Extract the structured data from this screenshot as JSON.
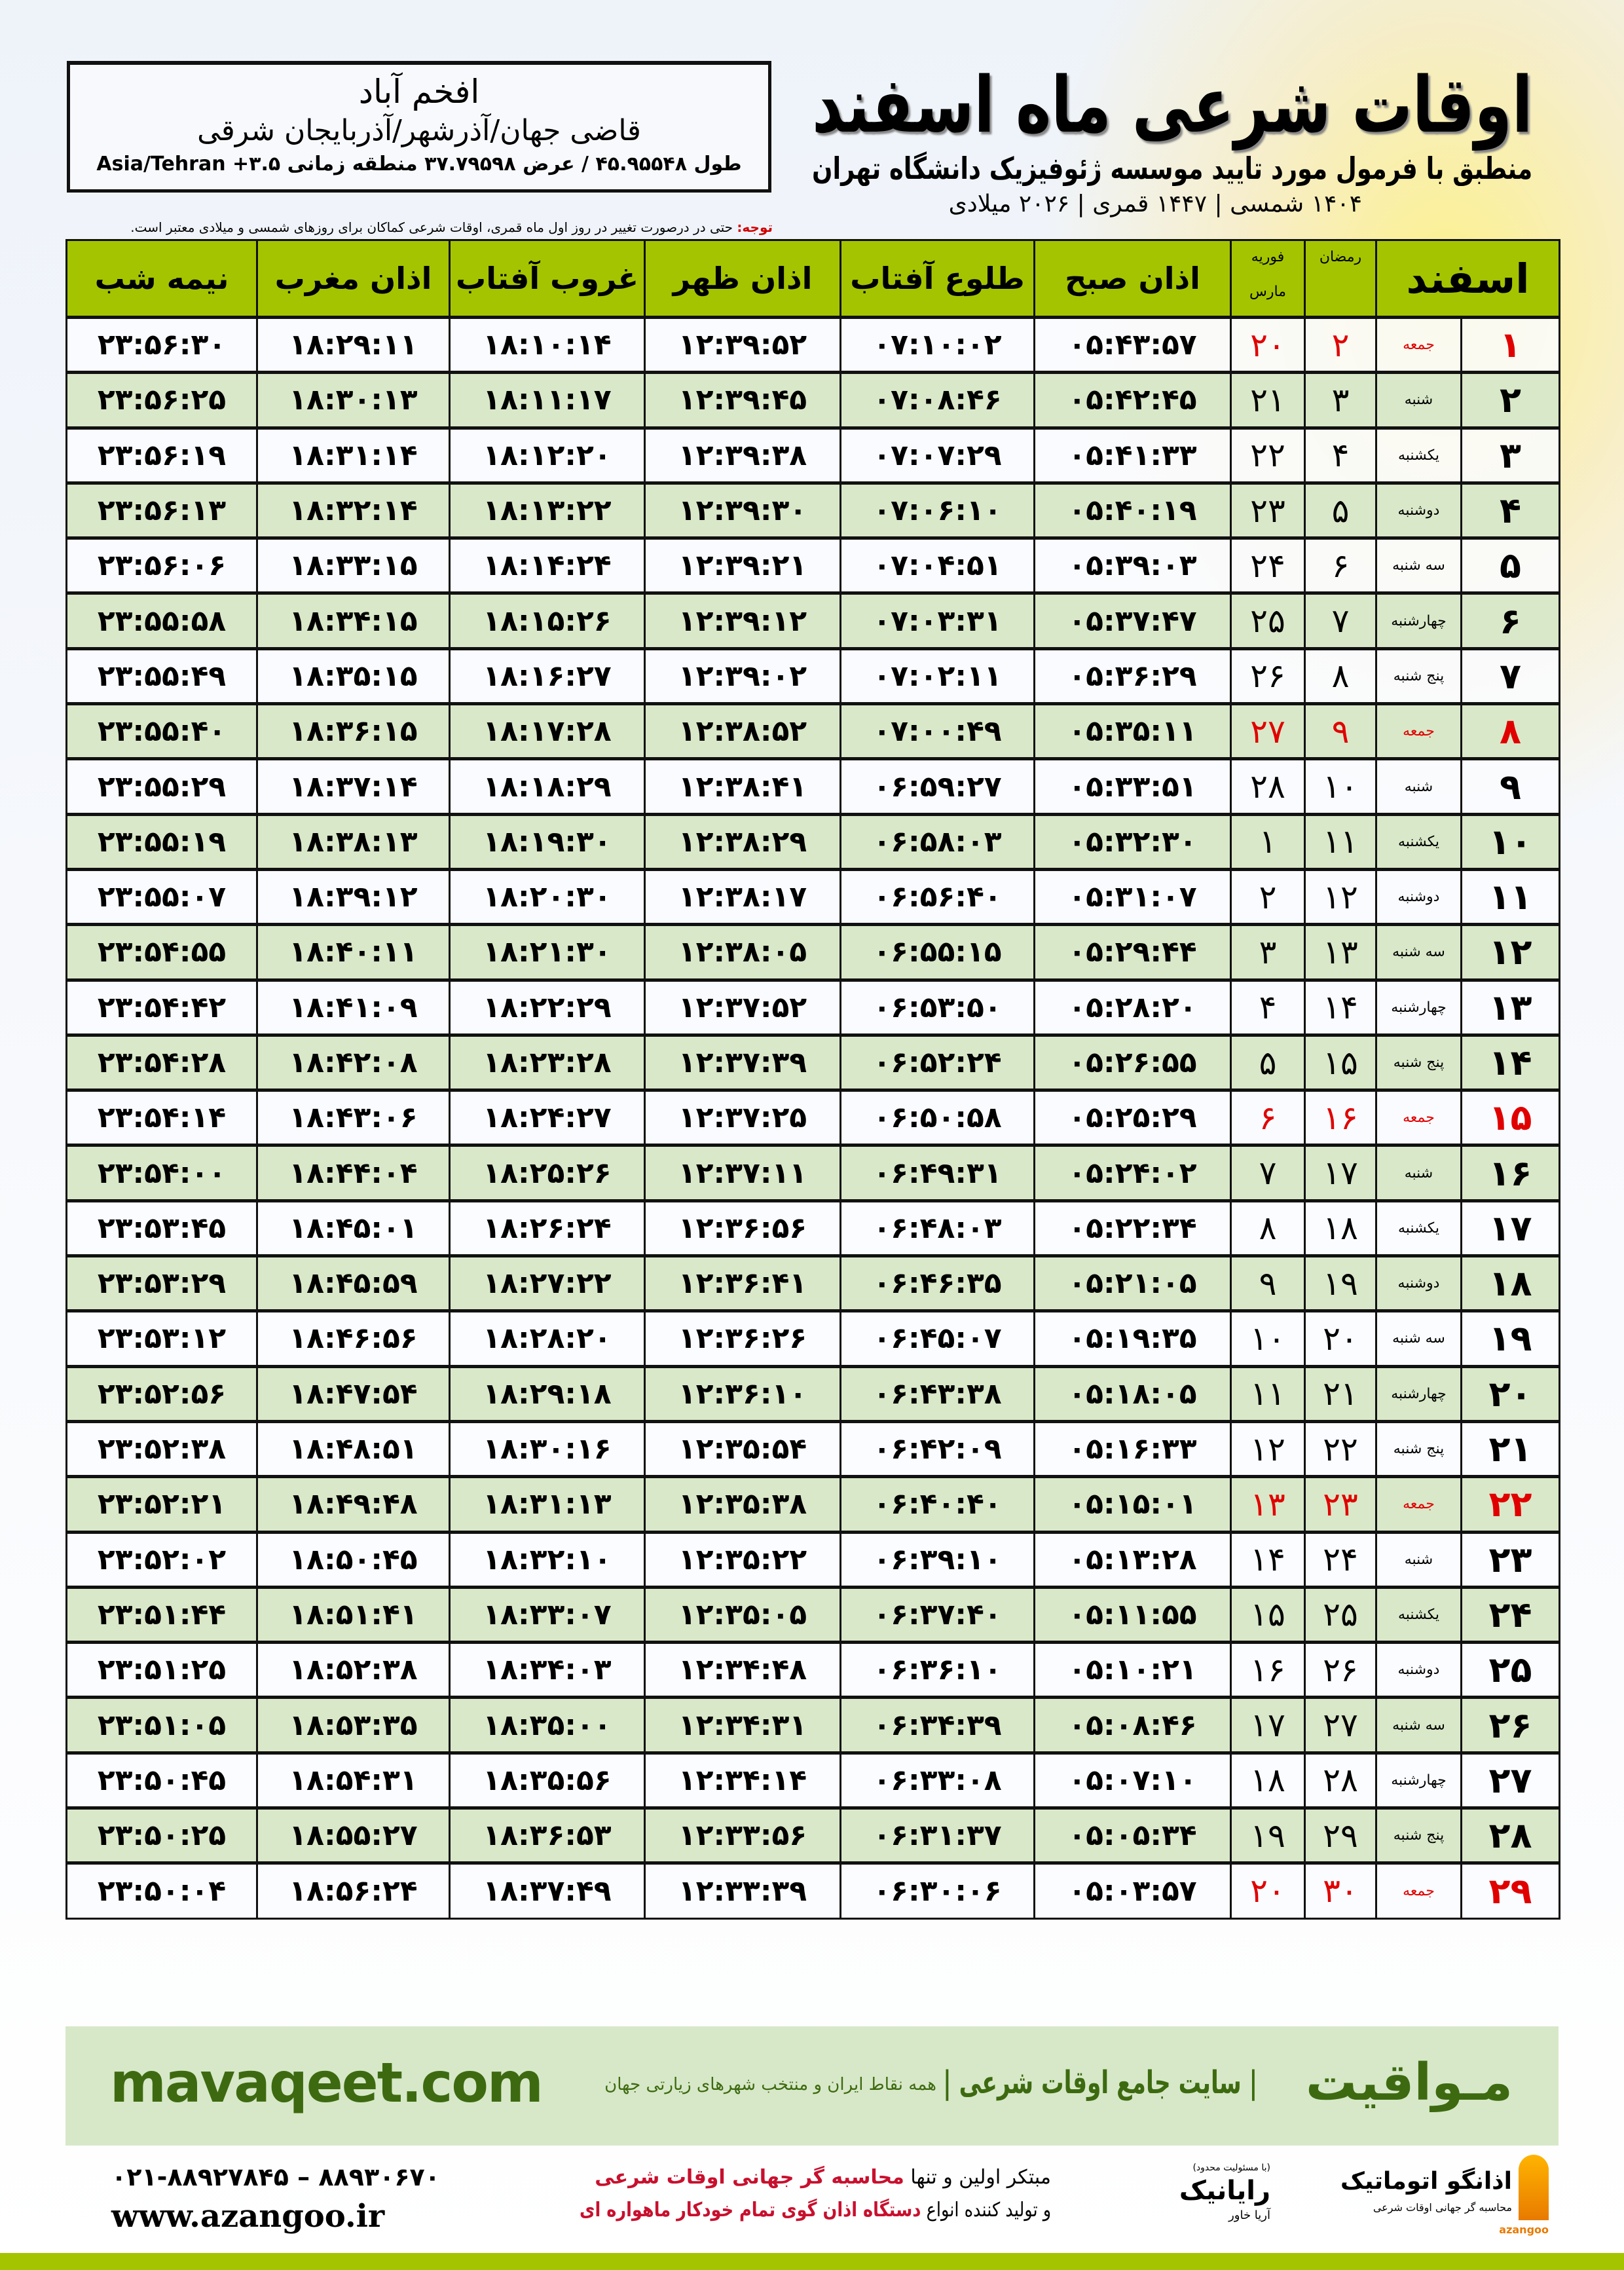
{
  "header": {
    "title": "اوقات شرعی ماه اسفند",
    "subtitle": "منطبق با فرمول مورد تایید موسسه ژئوفیزیک دانشگاه تهران",
    "dates": "۱۴۰۴ شمسی | ۱۴۴۷ قمری | ۲۰۲۶ میلادی"
  },
  "location": {
    "city": "افخم آباد",
    "path": "قاضی جهان/آذرشهر/آذربایجان شرقی",
    "coords": "طول ۴۵.۹۵۵۴۸ / عرض ۳۷.۷۹۵۹۸ منطقه زمانی ۳.۵+ Asia/Tehran"
  },
  "note": {
    "label": "توجه:",
    "text": " حتی در درصورت تغییر در روز اول ماه قمری، اوقات شرعی کماکان برای روزهای شمسی و میلادی معتبر است."
  },
  "table": {
    "headers": {
      "esfand": "اسفند",
      "ramadan": "رمضان",
      "feb": "فوریه",
      "march": "مارس",
      "sobh": "اذان صبح",
      "tolu": "طلوع آفتاب",
      "zohr": "اذان ظهر",
      "ghorub": "غروب آفتاب",
      "maghreb": "اذان مغرب",
      "nimeh": "نیمه شب"
    },
    "holiday_color": "#e00000",
    "rows": [
      {
        "day": "۱",
        "weekday": "جمعه",
        "ramadan": "۲",
        "march": "۲۰",
        "sobh": "۰۵:۴۳:۵۷",
        "tolu": "۰۷:۱۰:۰۲",
        "zohr": "۱۲:۳۹:۵۲",
        "ghorub": "۱۸:۱۰:۱۴",
        "maghreb": "۱۸:۲۹:۱۱",
        "nimeh": "۲۳:۵۶:۳۰",
        "holiday": true
      },
      {
        "day": "۲",
        "weekday": "شنبه",
        "ramadan": "۳",
        "march": "۲۱",
        "sobh": "۰۵:۴۲:۴۵",
        "tolu": "۰۷:۰۸:۴۶",
        "zohr": "۱۲:۳۹:۴۵",
        "ghorub": "۱۸:۱۱:۱۷",
        "maghreb": "۱۸:۳۰:۱۳",
        "nimeh": "۲۳:۵۶:۲۵",
        "holiday": false
      },
      {
        "day": "۳",
        "weekday": "یکشنبه",
        "ramadan": "۴",
        "march": "۲۲",
        "sobh": "۰۵:۴۱:۳۳",
        "tolu": "۰۷:۰۷:۲۹",
        "zohr": "۱۲:۳۹:۳۸",
        "ghorub": "۱۸:۱۲:۲۰",
        "maghreb": "۱۸:۳۱:۱۴",
        "nimeh": "۲۳:۵۶:۱۹",
        "holiday": false
      },
      {
        "day": "۴",
        "weekday": "دوشنبه",
        "ramadan": "۵",
        "march": "۲۳",
        "sobh": "۰۵:۴۰:۱۹",
        "tolu": "۰۷:۰۶:۱۰",
        "zohr": "۱۲:۳۹:۳۰",
        "ghorub": "۱۸:۱۳:۲۲",
        "maghreb": "۱۸:۳۲:۱۴",
        "nimeh": "۲۳:۵۶:۱۳",
        "holiday": false
      },
      {
        "day": "۵",
        "weekday": "سه شنبه",
        "ramadan": "۶",
        "march": "۲۴",
        "sobh": "۰۵:۳۹:۰۳",
        "tolu": "۰۷:۰۴:۵۱",
        "zohr": "۱۲:۳۹:۲۱",
        "ghorub": "۱۸:۱۴:۲۴",
        "maghreb": "۱۸:۳۳:۱۵",
        "nimeh": "۲۳:۵۶:۰۶",
        "holiday": false
      },
      {
        "day": "۶",
        "weekday": "چهارشنبه",
        "ramadan": "۷",
        "march": "۲۵",
        "sobh": "۰۵:۳۷:۴۷",
        "tolu": "۰۷:۰۳:۳۱",
        "zohr": "۱۲:۳۹:۱۲",
        "ghorub": "۱۸:۱۵:۲۶",
        "maghreb": "۱۸:۳۴:۱۵",
        "nimeh": "۲۳:۵۵:۵۸",
        "holiday": false
      },
      {
        "day": "۷",
        "weekday": "پنج شنبه",
        "ramadan": "۸",
        "march": "۲۶",
        "sobh": "۰۵:۳۶:۲۹",
        "tolu": "۰۷:۰۲:۱۱",
        "zohr": "۱۲:۳۹:۰۲",
        "ghorub": "۱۸:۱۶:۲۷",
        "maghreb": "۱۸:۳۵:۱۵",
        "nimeh": "۲۳:۵۵:۴۹",
        "holiday": false
      },
      {
        "day": "۸",
        "weekday": "جمعه",
        "ramadan": "۹",
        "march": "۲۷",
        "sobh": "۰۵:۳۵:۱۱",
        "tolu": "۰۷:۰۰:۴۹",
        "zohr": "۱۲:۳۸:۵۲",
        "ghorub": "۱۸:۱۷:۲۸",
        "maghreb": "۱۸:۳۶:۱۵",
        "nimeh": "۲۳:۵۵:۴۰",
        "holiday": true
      },
      {
        "day": "۹",
        "weekday": "شنبه",
        "ramadan": "۱۰",
        "march": "۲۸",
        "sobh": "۰۵:۳۳:۵۱",
        "tolu": "۰۶:۵۹:۲۷",
        "zohr": "۱۲:۳۸:۴۱",
        "ghorub": "۱۸:۱۸:۲۹",
        "maghreb": "۱۸:۳۷:۱۴",
        "nimeh": "۲۳:۵۵:۲۹",
        "holiday": false
      },
      {
        "day": "۱۰",
        "weekday": "یکشنبه",
        "ramadan": "۱۱",
        "march": "۱",
        "sobh": "۰۵:۳۲:۳۰",
        "tolu": "۰۶:۵۸:۰۳",
        "zohr": "۱۲:۳۸:۲۹",
        "ghorub": "۱۸:۱۹:۳۰",
        "maghreb": "۱۸:۳۸:۱۳",
        "nimeh": "۲۳:۵۵:۱۹",
        "holiday": false
      },
      {
        "day": "۱۱",
        "weekday": "دوشنبه",
        "ramadan": "۱۲",
        "march": "۲",
        "sobh": "۰۵:۳۱:۰۷",
        "tolu": "۰۶:۵۶:۴۰",
        "zohr": "۱۲:۳۸:۱۷",
        "ghorub": "۱۸:۲۰:۳۰",
        "maghreb": "۱۸:۳۹:۱۲",
        "nimeh": "۲۳:۵۵:۰۷",
        "holiday": false
      },
      {
        "day": "۱۲",
        "weekday": "سه شنبه",
        "ramadan": "۱۳",
        "march": "۳",
        "sobh": "۰۵:۲۹:۴۴",
        "tolu": "۰۶:۵۵:۱۵",
        "zohr": "۱۲:۳۸:۰۵",
        "ghorub": "۱۸:۲۱:۳۰",
        "maghreb": "۱۸:۴۰:۱۱",
        "nimeh": "۲۳:۵۴:۵۵",
        "holiday": false
      },
      {
        "day": "۱۳",
        "weekday": "چهارشنبه",
        "ramadan": "۱۴",
        "march": "۴",
        "sobh": "۰۵:۲۸:۲۰",
        "tolu": "۰۶:۵۳:۵۰",
        "zohr": "۱۲:۳۷:۵۲",
        "ghorub": "۱۸:۲۲:۲۹",
        "maghreb": "۱۸:۴۱:۰۹",
        "nimeh": "۲۳:۵۴:۴۲",
        "holiday": false
      },
      {
        "day": "۱۴",
        "weekday": "پنج شنبه",
        "ramadan": "۱۵",
        "march": "۵",
        "sobh": "۰۵:۲۶:۵۵",
        "tolu": "۰۶:۵۲:۲۴",
        "zohr": "۱۲:۳۷:۳۹",
        "ghorub": "۱۸:۲۳:۲۸",
        "maghreb": "۱۸:۴۲:۰۸",
        "nimeh": "۲۳:۵۴:۲۸",
        "holiday": false
      },
      {
        "day": "۱۵",
        "weekday": "جمعه",
        "ramadan": "۱۶",
        "march": "۶",
        "sobh": "۰۵:۲۵:۲۹",
        "tolu": "۰۶:۵۰:۵۸",
        "zohr": "۱۲:۳۷:۲۵",
        "ghorub": "۱۸:۲۴:۲۷",
        "maghreb": "۱۸:۴۳:۰۶",
        "nimeh": "۲۳:۵۴:۱۴",
        "holiday": true
      },
      {
        "day": "۱۶",
        "weekday": "شنبه",
        "ramadan": "۱۷",
        "march": "۷",
        "sobh": "۰۵:۲۴:۰۲",
        "tolu": "۰۶:۴۹:۳۱",
        "zohr": "۱۲:۳۷:۱۱",
        "ghorub": "۱۸:۲۵:۲۶",
        "maghreb": "۱۸:۴۴:۰۴",
        "nimeh": "۲۳:۵۴:۰۰",
        "holiday": false
      },
      {
        "day": "۱۷",
        "weekday": "یکشنبه",
        "ramadan": "۱۸",
        "march": "۸",
        "sobh": "۰۵:۲۲:۳۴",
        "tolu": "۰۶:۴۸:۰۳",
        "zohr": "۱۲:۳۶:۵۶",
        "ghorub": "۱۸:۲۶:۲۴",
        "maghreb": "۱۸:۴۵:۰۱",
        "nimeh": "۲۳:۵۳:۴۵",
        "holiday": false
      },
      {
        "day": "۱۸",
        "weekday": "دوشنبه",
        "ramadan": "۱۹",
        "march": "۹",
        "sobh": "۰۵:۲۱:۰۵",
        "tolu": "۰۶:۴۶:۳۵",
        "zohr": "۱۲:۳۶:۴۱",
        "ghorub": "۱۸:۲۷:۲۲",
        "maghreb": "۱۸:۴۵:۵۹",
        "nimeh": "۲۳:۵۳:۲۹",
        "holiday": false
      },
      {
        "day": "۱۹",
        "weekday": "سه شنبه",
        "ramadan": "۲۰",
        "march": "۱۰",
        "sobh": "۰۵:۱۹:۳۵",
        "tolu": "۰۶:۴۵:۰۷",
        "zohr": "۱۲:۳۶:۲۶",
        "ghorub": "۱۸:۲۸:۲۰",
        "maghreb": "۱۸:۴۶:۵۶",
        "nimeh": "۲۳:۵۳:۱۲",
        "holiday": false
      },
      {
        "day": "۲۰",
        "weekday": "چهارشنبه",
        "ramadan": "۲۱",
        "march": "۱۱",
        "sobh": "۰۵:۱۸:۰۵",
        "tolu": "۰۶:۴۳:۳۸",
        "zohr": "۱۲:۳۶:۱۰",
        "ghorub": "۱۸:۲۹:۱۸",
        "maghreb": "۱۸:۴۷:۵۴",
        "nimeh": "۲۳:۵۲:۵۶",
        "holiday": false
      },
      {
        "day": "۲۱",
        "weekday": "پنج شنبه",
        "ramadan": "۲۲",
        "march": "۱۲",
        "sobh": "۰۵:۱۶:۳۳",
        "tolu": "۰۶:۴۲:۰۹",
        "zohr": "۱۲:۳۵:۵۴",
        "ghorub": "۱۸:۳۰:۱۶",
        "maghreb": "۱۸:۴۸:۵۱",
        "nimeh": "۲۳:۵۲:۳۸",
        "holiday": false
      },
      {
        "day": "۲۲",
        "weekday": "جمعه",
        "ramadan": "۲۳",
        "march": "۱۳",
        "sobh": "۰۵:۱۵:۰۱",
        "tolu": "۰۶:۴۰:۴۰",
        "zohr": "۱۲:۳۵:۳۸",
        "ghorub": "۱۸:۳۱:۱۳",
        "maghreb": "۱۸:۴۹:۴۸",
        "nimeh": "۲۳:۵۲:۲۱",
        "holiday": true
      },
      {
        "day": "۲۳",
        "weekday": "شنبه",
        "ramadan": "۲۴",
        "march": "۱۴",
        "sobh": "۰۵:۱۳:۲۸",
        "tolu": "۰۶:۳۹:۱۰",
        "zohr": "۱۲:۳۵:۲۲",
        "ghorub": "۱۸:۳۲:۱۰",
        "maghreb": "۱۸:۵۰:۴۵",
        "nimeh": "۲۳:۵۲:۰۲",
        "holiday": false
      },
      {
        "day": "۲۴",
        "weekday": "یکشنبه",
        "ramadan": "۲۵",
        "march": "۱۵",
        "sobh": "۰۵:۱۱:۵۵",
        "tolu": "۰۶:۳۷:۴۰",
        "zohr": "۱۲:۳۵:۰۵",
        "ghorub": "۱۸:۳۳:۰۷",
        "maghreb": "۱۸:۵۱:۴۱",
        "nimeh": "۲۳:۵۱:۴۴",
        "holiday": false
      },
      {
        "day": "۲۵",
        "weekday": "دوشنبه",
        "ramadan": "۲۶",
        "march": "۱۶",
        "sobh": "۰۵:۱۰:۲۱",
        "tolu": "۰۶:۳۶:۱۰",
        "zohr": "۱۲:۳۴:۴۸",
        "ghorub": "۱۸:۳۴:۰۳",
        "maghreb": "۱۸:۵۲:۳۸",
        "nimeh": "۲۳:۵۱:۲۵",
        "holiday": false
      },
      {
        "day": "۲۶",
        "weekday": "سه شنبه",
        "ramadan": "۲۷",
        "march": "۱۷",
        "sobh": "۰۵:۰۸:۴۶",
        "tolu": "۰۶:۳۴:۳۹",
        "zohr": "۱۲:۳۴:۳۱",
        "ghorub": "۱۸:۳۵:۰۰",
        "maghreb": "۱۸:۵۳:۳۵",
        "nimeh": "۲۳:۵۱:۰۵",
        "holiday": false
      },
      {
        "day": "۲۷",
        "weekday": "چهارشنبه",
        "ramadan": "۲۸",
        "march": "۱۸",
        "sobh": "۰۵:۰۷:۱۰",
        "tolu": "۰۶:۳۳:۰۸",
        "zohr": "۱۲:۳۴:۱۴",
        "ghorub": "۱۸:۳۵:۵۶",
        "maghreb": "۱۸:۵۴:۳۱",
        "nimeh": "۲۳:۵۰:۴۵",
        "holiday": false
      },
      {
        "day": "۲۸",
        "weekday": "پنج شنبه",
        "ramadan": "۲۹",
        "march": "۱۹",
        "sobh": "۰۵:۰۵:۳۴",
        "tolu": "۰۶:۳۱:۳۷",
        "zohr": "۱۲:۳۳:۵۶",
        "ghorub": "۱۸:۳۶:۵۳",
        "maghreb": "۱۸:۵۵:۲۷",
        "nimeh": "۲۳:۵۰:۲۵",
        "holiday": false
      },
      {
        "day": "۲۹",
        "weekday": "جمعه",
        "ramadan": "۳۰",
        "march": "۲۰",
        "sobh": "۰۵:۰۳:۵۷",
        "tolu": "۰۶:۳۰:۰۶",
        "zohr": "۱۲:۳۳:۳۹",
        "ghorub": "۱۸:۳۷:۴۹",
        "maghreb": "۱۸:۵۶:۲۴",
        "nimeh": "۲۳:۵۰:۰۴",
        "holiday": true
      }
    ]
  },
  "footer": {
    "brand": "مـواقیت",
    "slogan": "| سایت جامع اوقات شرعی |",
    "slogan2": "همه نقاط ایران و منتخب شهرهای زیارتی جهان",
    "site": "mavaqeet.com",
    "phone": "۰۲۱-۸۸۹۲۷۸۴۵ – ۸۸۹۳۰۶۷۰",
    "web": "www.azangoo.ir",
    "promo_line1_a": "مبتکر اولین و تنها ",
    "promo_line1_b": "محاسبه گر جهانی اوقات شرعی",
    "promo_line2_a": "و تولید کننده انواع ",
    "promo_line2_b": "دستگاه اذان گوی تمام خودکار ماهواره ای",
    "logo1_name": "اذانگو اتوماتیک",
    "logo1_tag": "محاسبه گر جهانی اوقات شرعی",
    "logo1_en": "azangoo",
    "logo2_name": "رایانیک",
    "logo2_note": "(با مسئولیت محدود)",
    "logo2_sub": "آریا خاور"
  }
}
